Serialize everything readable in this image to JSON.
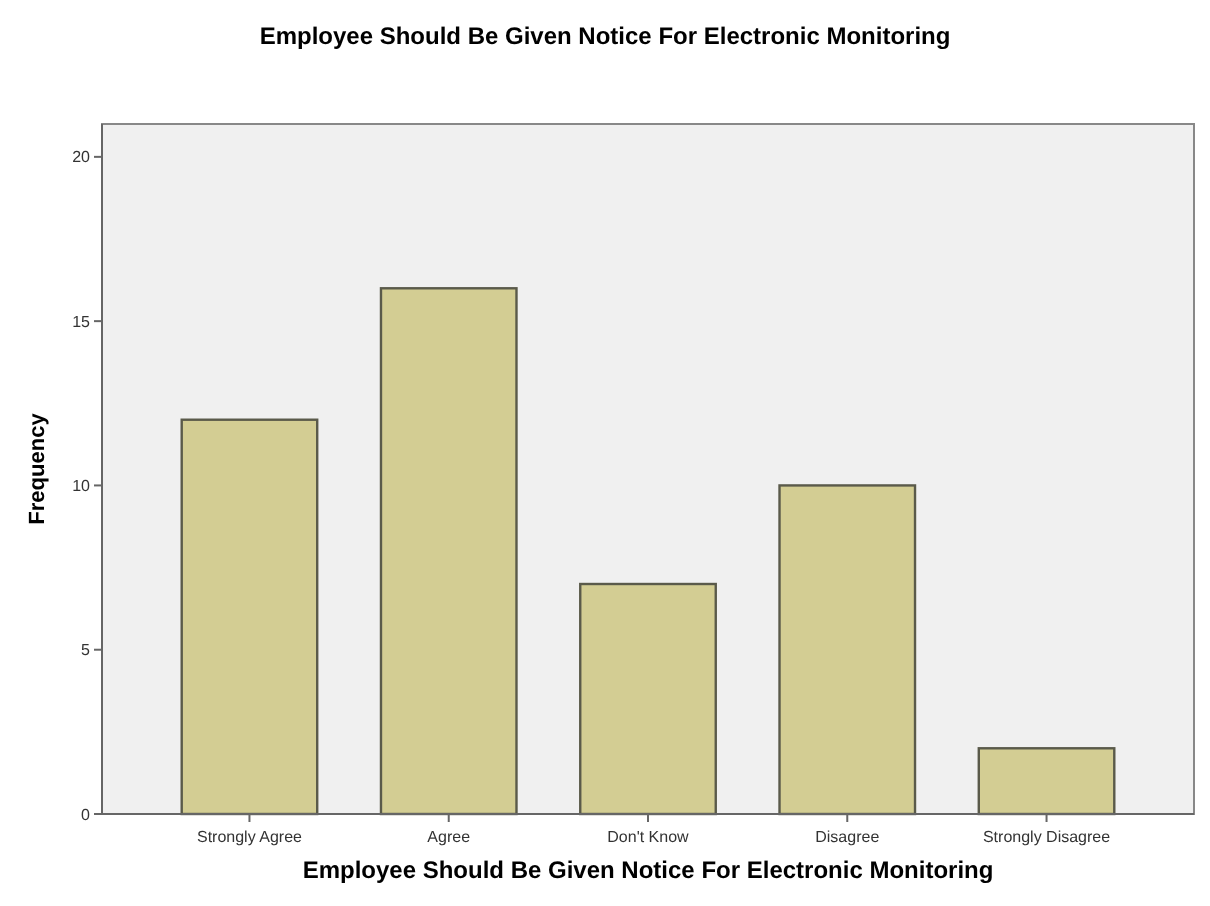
{
  "chart_data": {
    "type": "bar",
    "title": "Employee Should Be Given Notice For Electronic Monitoring",
    "xlabel": "Employee Should Be Given Notice For Electronic Monitoring",
    "ylabel": "Frequency",
    "categories": [
      "Strongly Agree",
      "Agree",
      "Don't Know",
      "Disagree",
      "Strongly Disagree"
    ],
    "values": [
      12,
      16,
      7,
      10,
      2
    ],
    "color": "#d3cd93",
    "ylim": [
      0,
      21
    ],
    "yticks": [
      0,
      5,
      10,
      15,
      20
    ],
    "grid": false
  }
}
